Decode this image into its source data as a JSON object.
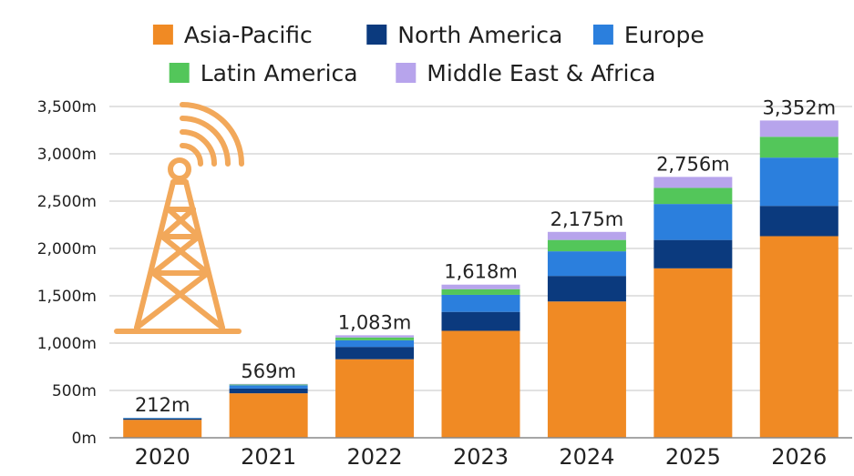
{
  "chart_data": {
    "type": "bar",
    "stacked": true,
    "categories": [
      "2020",
      "2021",
      "2022",
      "2023",
      "2024",
      "2025",
      "2026"
    ],
    "series": [
      {
        "name": "Asia-Pacific",
        "color": "#f08a24",
        "values": [
          190,
          470,
          830,
          1130,
          1440,
          1790,
          2130
        ]
      },
      {
        "name": "North America",
        "color": "#0b3a7e",
        "values": [
          12,
          50,
          130,
          200,
          270,
          300,
          320
        ]
      },
      {
        "name": "Europe",
        "color": "#2b7fdd",
        "values": [
          6,
          35,
          70,
          180,
          260,
          380,
          510
        ]
      },
      {
        "name": "Latin America",
        "color": "#53c65a",
        "values": [
          2,
          8,
          30,
          60,
          120,
          170,
          220
        ]
      },
      {
        "name": "Middle East & Africa",
        "color": "#b7a4ec",
        "values": [
          2,
          6,
          23,
          48,
          85,
          116,
          172
        ]
      }
    ],
    "totals": [
      "212m",
      "569m",
      "1,083m",
      "1,618m",
      "2,175m",
      "2,756m",
      "3,352m"
    ],
    "yticks": [
      "0m",
      "500m",
      "1,000m",
      "1,500m",
      "2,000m",
      "2,500m",
      "3,000m",
      "3,500m"
    ],
    "ylim": [
      0,
      3500
    ],
    "grid": true,
    "legend_position": "top",
    "icon": "cell-tower-icon"
  }
}
